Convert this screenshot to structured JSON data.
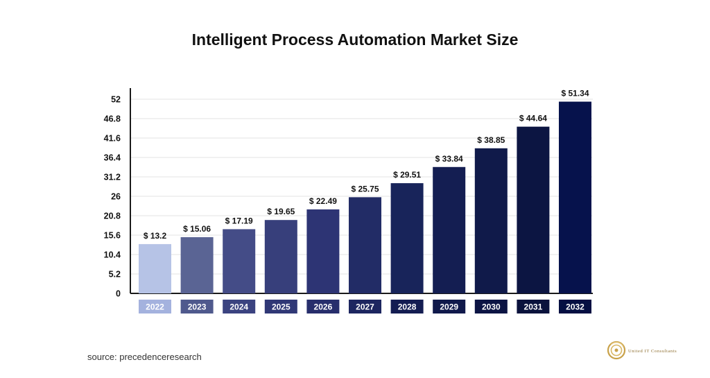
{
  "chart_data": {
    "type": "bar",
    "title": "Intelligent Process Automation Market Size",
    "categories": [
      "2022",
      "2023",
      "2024",
      "2025",
      "2026",
      "2027",
      "2028",
      "2029",
      "2030",
      "2031",
      "2032"
    ],
    "values": [
      13.2,
      15.06,
      17.19,
      19.65,
      22.49,
      25.75,
      29.51,
      33.84,
      38.85,
      44.64,
      51.34
    ],
    "value_labels": [
      "$ 13.2",
      "$ 15.06",
      "$ 17.19",
      "$ 19.65",
      "$ 22.49",
      "$ 25.75",
      "$ 29.51",
      "$ 33.84",
      "$ 38.85",
      "$ 44.64",
      "$ 51.34"
    ],
    "yticks": [
      "0",
      "5.2",
      "10.4",
      "15.6",
      "20.8",
      "26",
      "31.2",
      "36.4",
      "41.6",
      "46.8",
      "52"
    ],
    "ylim": [
      0,
      52
    ],
    "xlabel": "",
    "ylabel": "",
    "grid": true,
    "legend": "none",
    "bar_colors": [
      "#b6c3e6",
      "#5a6494",
      "#444c87",
      "#373f7b",
      "#2d3474",
      "#222c66",
      "#18245a",
      "#141e52",
      "#101a4a",
      "#0c1542",
      "#06124c"
    ],
    "label_box_colors": [
      "#a4b2de",
      "#4f598d",
      "#3b4380",
      "#303876",
      "#272e6c",
      "#1d2660",
      "#141d52",
      "#10194b",
      "#0c1444",
      "#0a123c",
      "#050f42"
    ]
  },
  "source": "source: precedenceresearch",
  "logo": {
    "name": "United IT Consultants",
    "accent_color": "#c9a24a"
  }
}
